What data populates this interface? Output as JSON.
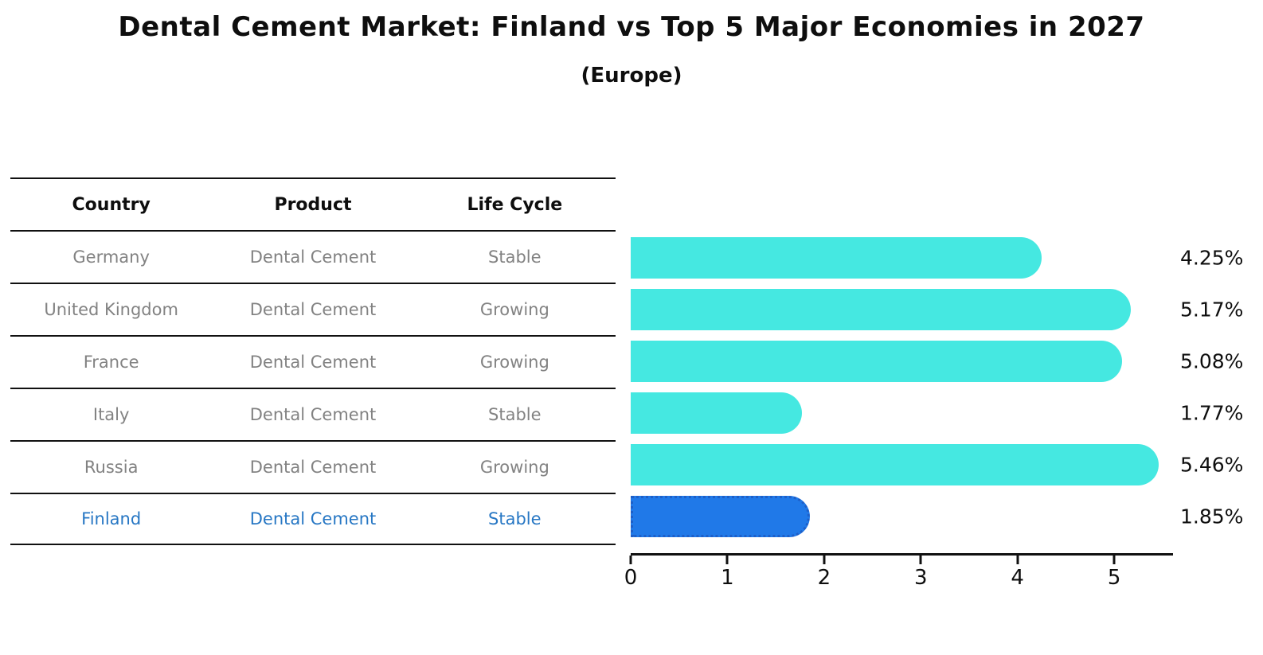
{
  "title": "Dental Cement Market: Finland vs Top 5 Major Economies in 2027",
  "subtitle": "(Europe)",
  "table": {
    "headers": [
      "Country",
      "Product",
      "Life Cycle"
    ]
  },
  "rows": [
    {
      "country": "Germany",
      "product": "Dental Cement",
      "life_cycle": "Stable",
      "label": "4.25%"
    },
    {
      "country": "United Kingdom",
      "product": "Dental Cement",
      "life_cycle": "Growing",
      "label": "5.17%"
    },
    {
      "country": "France",
      "product": "Dental Cement",
      "life_cycle": "Growing",
      "label": "5.08%"
    },
    {
      "country": "Italy",
      "product": "Dental Cement",
      "life_cycle": "Stable",
      "label": "1.77%"
    },
    {
      "country": "Russia",
      "product": "Dental Cement",
      "life_cycle": "Growing",
      "label": "5.46%"
    },
    {
      "country": "Finland",
      "product": "Dental Cement",
      "life_cycle": "Stable",
      "label": "1.85%"
    }
  ],
  "chart_data": {
    "type": "bar",
    "orientation": "horizontal",
    "title": "Dental Cement Market: Finland vs Top 5 Major Economies in 2027 (Europe)",
    "categories": [
      "Germany",
      "United Kingdom",
      "France",
      "Italy",
      "Russia",
      "Finland"
    ],
    "values": [
      4.25,
      5.17,
      5.08,
      1.77,
      5.46,
      1.85
    ],
    "value_labels": [
      "4.25%",
      "5.17%",
      "5.08%",
      "1.77%",
      "5.46%",
      "1.85%"
    ],
    "unit": "%",
    "xlim": [
      0,
      5.6
    ],
    "x_ticks": [
      0,
      1,
      2,
      3,
      4,
      5
    ],
    "grid": false,
    "legend": false,
    "bar_color": "#45E8E1",
    "highlight_index": 5,
    "highlight_color": "#2079E8",
    "highlight_border_color": "#1E5FC8",
    "highlight_text_color": "#2777C4"
  }
}
